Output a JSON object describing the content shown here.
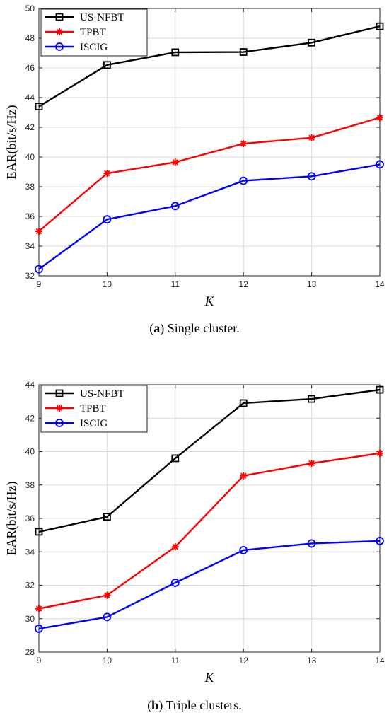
{
  "chart_data": [
    {
      "type": "line",
      "caption_letter": "a",
      "caption_text": "Single cluster.",
      "xlabel": "K",
      "ylabel": "EAR(bit/s/Hz)",
      "x": [
        9,
        10,
        11,
        12,
        13,
        14
      ],
      "xlim": [
        9,
        14
      ],
      "ylim": [
        32,
        50
      ],
      "xticks": [
        "9",
        "10",
        "11",
        "12",
        "13",
        "14"
      ],
      "yticks": [
        "32",
        "34",
        "36",
        "38",
        "40",
        "42",
        "44",
        "46",
        "48",
        "50"
      ],
      "grid": true,
      "legend_position": "top-left",
      "series": [
        {
          "name": "US-NFBT",
          "color": "#000000",
          "marker": "square",
          "values": [
            43.4,
            46.2,
            47.05,
            47.07,
            47.7,
            48.8
          ]
        },
        {
          "name": "TPBT",
          "color": "#ff0000",
          "marker": "asterisk",
          "values": [
            35.0,
            38.9,
            39.65,
            40.9,
            41.3,
            42.65
          ]
        },
        {
          "name": "ISCIG",
          "color": "#0000ff",
          "marker": "circle",
          "values": [
            32.45,
            35.8,
            36.7,
            38.4,
            38.7,
            39.5
          ]
        }
      ]
    },
    {
      "type": "line",
      "caption_letter": "b",
      "caption_text": "Triple clusters.",
      "xlabel": "K",
      "ylabel": "EAR(bit/s/Hz)",
      "x": [
        9,
        10,
        11,
        12,
        13,
        14
      ],
      "xlim": [
        9,
        14
      ],
      "ylim": [
        28,
        44
      ],
      "xticks": [
        "9",
        "10",
        "11",
        "12",
        "13",
        "14"
      ],
      "yticks": [
        "28",
        "30",
        "32",
        "34",
        "36",
        "38",
        "40",
        "42",
        "44"
      ],
      "grid": true,
      "legend_position": "top-left",
      "series": [
        {
          "name": "US-NFBT",
          "color": "#000000",
          "marker": "square",
          "values": [
            35.2,
            36.1,
            39.6,
            42.9,
            43.15,
            43.7
          ]
        },
        {
          "name": "TPBT",
          "color": "#ff0000",
          "marker": "asterisk",
          "values": [
            30.6,
            31.4,
            34.3,
            38.55,
            39.3,
            39.9
          ]
        },
        {
          "name": "ISCIG",
          "color": "#0000ff",
          "marker": "circle",
          "values": [
            29.4,
            30.1,
            32.15,
            34.1,
            34.5,
            34.65
          ]
        }
      ]
    }
  ]
}
